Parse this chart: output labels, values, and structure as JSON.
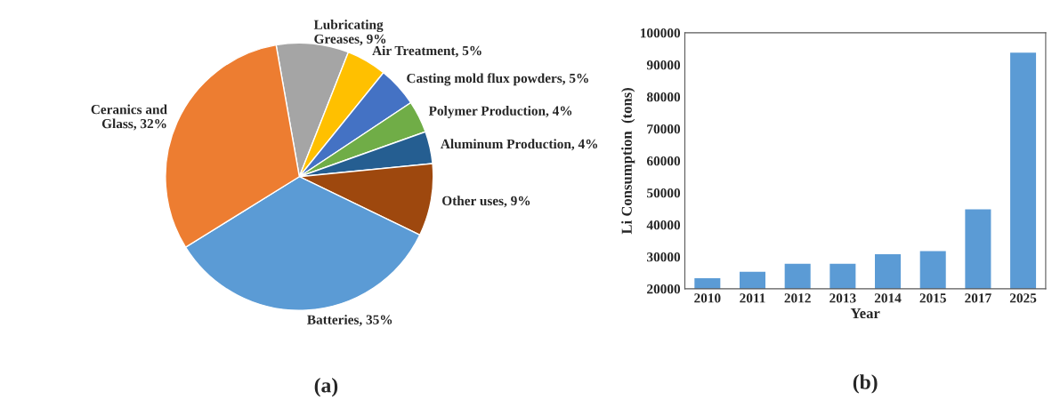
{
  "chart_data": [
    {
      "type": "pie",
      "title": "(a)",
      "categories": [
        "Lubricating\nGreases, 9%",
        "Air Treatment, 5%",
        "Casting mold flux powders, 5%",
        "Polymer Production, 4%",
        "Aluminum Production, 4%",
        "Other uses, 9%",
        "Batteries, 35%",
        "Ceranics and\nGlass, 32%"
      ],
      "values": [
        9,
        5,
        5,
        4,
        4,
        9,
        35,
        32
      ],
      "colors": [
        "#a5a5a5",
        "#ffc000",
        "#4472c4",
        "#70ad47",
        "#255e91",
        "#9e480e",
        "#5b9bd5",
        "#ed7d31"
      ]
    },
    {
      "type": "bar",
      "title": "(b)",
      "xlabel": "Year",
      "ylabel": "Li Consumption  (tons)",
      "categories": [
        "2010",
        "2011",
        "2012",
        "2013",
        "2014",
        "2015",
        "2017",
        "2025"
      ],
      "values": [
        23500,
        25500,
        28000,
        28000,
        31000,
        32000,
        45000,
        94000
      ],
      "color": "#5b9bd5",
      "ylim": [
        20000,
        100000
      ],
      "yticks": [
        20000,
        30000,
        40000,
        50000,
        60000,
        70000,
        80000,
        90000,
        100000
      ],
      "grid": false
    }
  ]
}
